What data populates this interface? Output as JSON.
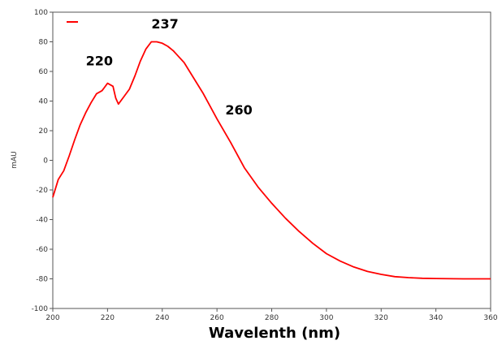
{
  "chart_data": {
    "type": "line",
    "xlabel": "Wavelenth (nm)",
    "ylabel": "mAU",
    "xlim": [
      200,
      360
    ],
    "ylim": [
      -100,
      100
    ],
    "xticks": [
      200,
      220,
      240,
      260,
      280,
      300,
      320,
      340,
      360
    ],
    "yticks": [
      -100,
      -80,
      -60,
      -40,
      -20,
      0,
      20,
      40,
      60,
      80,
      100
    ],
    "grid": false,
    "legend": {
      "position": "top-left",
      "entries": [
        ""
      ]
    },
    "series": [
      {
        "color": "#ff0000",
        "x": [
          200,
          202,
          204,
          206,
          208,
          210,
          212,
          214,
          216,
          218,
          220,
          222,
          223,
          224,
          226,
          228,
          230,
          232,
          234,
          236,
          238,
          240,
          242,
          244,
          246,
          248,
          250,
          255,
          260,
          265,
          270,
          275,
          280,
          285,
          290,
          295,
          300,
          305,
          310,
          315,
          320,
          325,
          330,
          335,
          340,
          350,
          360
        ],
        "y": [
          -25,
          -13,
          -7,
          3,
          14,
          24,
          32,
          39,
          45,
          47,
          52,
          50,
          42,
          38,
          43,
          48,
          57,
          67,
          75,
          80,
          80,
          79,
          77,
          74,
          70,
          66,
          60,
          45,
          28,
          12,
          -5,
          -18,
          -29,
          -39,
          -48,
          -56,
          -63,
          -68,
          -72,
          -75,
          -77,
          -78.5,
          -79.2,
          -79.6,
          -79.8,
          -80,
          -80
        ]
      }
    ],
    "annotations": [
      {
        "text": "220",
        "x": 217,
        "y": 64
      },
      {
        "text": "237",
        "x": 241,
        "y": 89
      },
      {
        "text": "260",
        "x": 268,
        "y": 31
      }
    ]
  }
}
